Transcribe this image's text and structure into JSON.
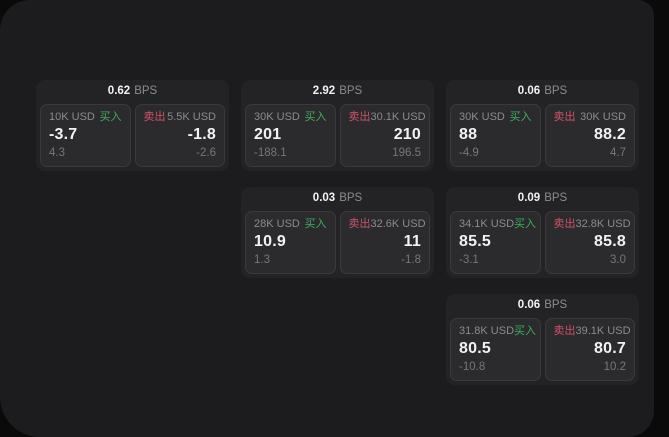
{
  "colors": {
    "screen_bg": "#0a0a0a",
    "page_bg": "#1c1c1e",
    "card_bg": "#232325",
    "panel_bg": "#2b2b2d",
    "panel_border": "#3a3a3c",
    "text_primary": "#f2f2f4",
    "text_muted": "#8b8b90",
    "text_faint": "#76767b",
    "buy_green": "#3eae5e",
    "sell_red": "#d05268"
  },
  "labels": {
    "bps_unit": "BPS",
    "buy": "买入",
    "sell": "卖出"
  },
  "cards": [
    {
      "bps": "0.62",
      "grid": {
        "row": 1,
        "col": 1
      },
      "buy": {
        "amount": "10K USD",
        "price": "-3.7",
        "sub_value": "4.3"
      },
      "sell": {
        "amount": "5.5K USD",
        "price": "-1.8",
        "sub_value": "-2.6"
      }
    },
    {
      "bps": "2.92",
      "grid": {
        "row": 1,
        "col": 2
      },
      "buy": {
        "amount": "30K USD",
        "price": "201",
        "sub_value": "-188.1"
      },
      "sell": {
        "amount": "30.1K USD",
        "price": "210",
        "sub_value": "196.5"
      }
    },
    {
      "bps": "0.06",
      "grid": {
        "row": 1,
        "col": 3
      },
      "buy": {
        "amount": "30K USD",
        "price": "88",
        "sub_value": "-4.9"
      },
      "sell": {
        "amount": "30K USD",
        "price": "88.2",
        "sub_value": "4.7"
      }
    },
    {
      "bps": "0.03",
      "grid": {
        "row": 2,
        "col": 2
      },
      "buy": {
        "amount": "28K USD",
        "price": "10.9",
        "sub_value": "1.3"
      },
      "sell": {
        "amount": "32.6K USD",
        "price": "11",
        "sub_value": "-1.8"
      }
    },
    {
      "bps": "0.09",
      "grid": {
        "row": 2,
        "col": 3
      },
      "buy": {
        "amount": "34.1K USD",
        "price": "85.5",
        "sub_value": "-3.1"
      },
      "sell": {
        "amount": "32.8K USD",
        "price": "85.8",
        "sub_value": "3.0"
      }
    },
    {
      "bps": "0.06",
      "grid": {
        "row": 3,
        "col": 3
      },
      "buy": {
        "amount": "31.8K USD",
        "price": "80.5",
        "sub_value": "-10.8"
      },
      "sell": {
        "amount": "39.1K USD",
        "price": "80.7",
        "sub_value": "10.2"
      }
    }
  ]
}
